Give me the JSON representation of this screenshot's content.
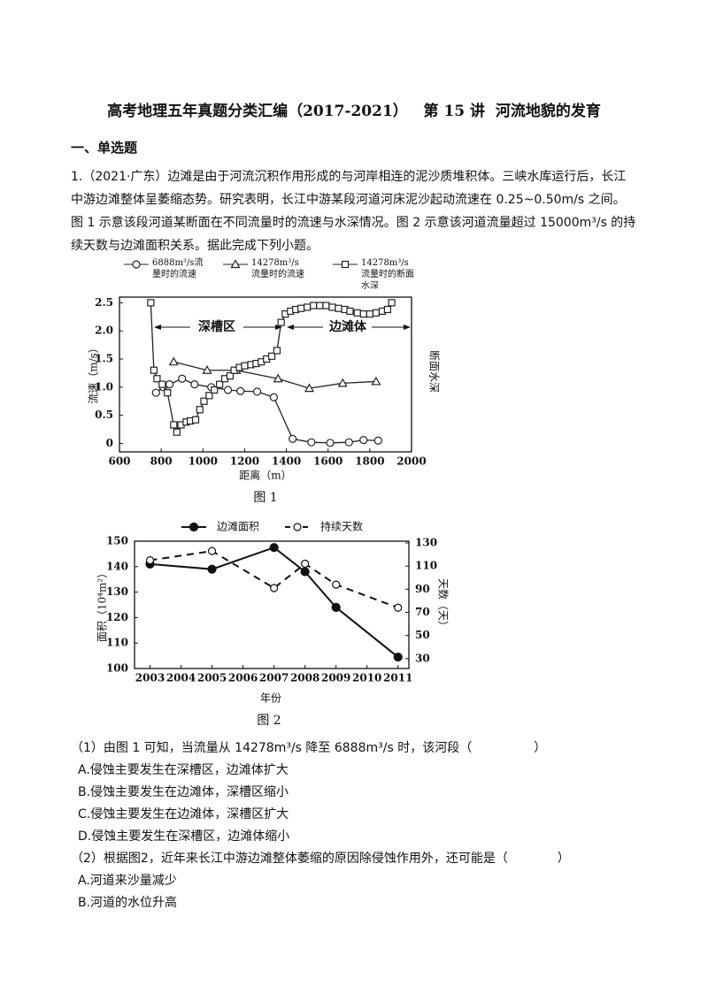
{
  "header": {
    "title": "高考地理五年真题分类汇编（2017-2021）   第 15 讲  河流地貌的发育"
  },
  "section": "一、单选题",
  "question": {
    "stem": "1.（2021·广东）边滩是由于河流沉积作用形成的与河岸相连的泥沙质堆积体。三峡水库运行后，长江中游边滩整体呈萎缩态势。研究表明，长江中游某段河道河床泥沙起动流速在 0.25~0.50m/s 之间。图 1 示意该段河道某断面在不同流量时的流速与水深情况。图 2 示意该河道流量超过 15000m³/s 的持续天数与边滩面积关系。据此完成下列小题。",
    "figure_captions": [
      "图 1",
      "图 2"
    ],
    "sub_questions": [
      {
        "stem": "（1）由图 1 可知，当流量从 14278m³/s 降至 6888m³/s 时，该河段（　　　　　）",
        "options": [
          "A.侵蚀主要发生在深槽区，边滩体扩大",
          "B.侵蚀主要发生在边滩体，深槽区缩小",
          "C.侵蚀主要发生在边滩体，深槽区扩大",
          "D.侵蚀主要发生在深槽区，边滩体缩小"
        ]
      },
      {
        "stem": "（2）根据图2，近年来长江中游边滩整体萎缩的原因除侵蚀作用外，还可能是（　　　　）",
        "options": [
          "A.河道来沙量减少",
          "B.河道的水位升高"
        ]
      }
    ]
  },
  "chart_data": [
    {
      "type": "line",
      "x_label": "距离（m）",
      "y_label": "流速（m/s）",
      "y2_label": "断面水深",
      "xlim": [
        600,
        2000
      ],
      "xticks": [
        600,
        800,
        1000,
        1200,
        1400,
        1600,
        1800,
        2000
      ],
      "ylim": [
        -0.15,
        2.6
      ],
      "yticks": [
        0,
        0.5,
        {
          "value": 1,
          "label": "1.0"
        },
        1.5,
        {
          "value": 2,
          "label": "2.0"
        },
        2.5
      ],
      "y2lim": [
        -0.15,
        2.6
      ],
      "annotations": [
        "深槽区",
        "边滩体"
      ],
      "series": [
        {
          "name": "6888m³/s流量时的流速",
          "color": "#222",
          "marker": "circle",
          "axis": "y",
          "x": [
            775,
            810,
            840,
            900,
            960,
            1040,
            1120,
            1180,
            1260,
            1340,
            1430,
            1520,
            1610,
            1700,
            1770,
            1840
          ],
          "values": [
            0.9,
            1.0,
            1.05,
            1.15,
            1.05,
            1.0,
            0.95,
            0.93,
            0.92,
            0.82,
            0.08,
            0.02,
            0.01,
            0.02,
            0.06,
            0.05
          ]
        },
        {
          "name": "14278m³/s流量时的流速",
          "color": "#222",
          "marker": "triangle",
          "axis": "y",
          "x": [
            860,
            1020,
            1160,
            1360,
            1510,
            1670,
            1830
          ],
          "values": [
            1.45,
            1.3,
            1.3,
            1.15,
            0.98,
            1.07,
            1.1
          ]
        },
        {
          "name": "14278m³/s流量时的断面水深",
          "color": "#222",
          "marker": "square",
          "axis": "y2",
          "x": [
            750,
            765,
            780,
            805,
            830,
            860,
            875,
            895,
            920,
            940,
            965,
            985,
            1005,
            1030,
            1055,
            1080,
            1105,
            1130,
            1150,
            1175,
            1200,
            1230,
            1255,
            1280,
            1305,
            1330,
            1355,
            1375,
            1395,
            1420,
            1445,
            1470,
            1500,
            1530,
            1560,
            1590,
            1620,
            1650,
            1680,
            1705,
            1740,
            1770,
            1800,
            1830,
            1860,
            1885,
            1905
          ],
          "values": [
            2.5,
            1.3,
            1.15,
            1.05,
            0.9,
            0.33,
            0.2,
            0.33,
            0.38,
            0.4,
            0.42,
            0.6,
            0.75,
            0.85,
            0.95,
            1.05,
            1.15,
            1.2,
            1.3,
            1.35,
            1.38,
            1.4,
            1.42,
            1.45,
            1.5,
            1.55,
            1.65,
            2.15,
            2.3,
            2.35,
            2.38,
            2.4,
            2.42,
            2.45,
            2.45,
            2.45,
            2.42,
            2.4,
            2.38,
            2.35,
            2.32,
            2.3,
            2.3,
            2.32,
            2.35,
            2.38,
            2.5
          ]
        }
      ]
    },
    {
      "type": "line",
      "x_label": "年份",
      "y_label": "面积（10⁴m²）",
      "y2_label": "天数（天）",
      "xlim": [
        2002.5,
        2011.35
      ],
      "xticks": [
        2003,
        2004,
        2005,
        2006,
        2007,
        2008,
        2009,
        2010,
        2011
      ],
      "ylim": [
        100,
        150
      ],
      "yticks": [
        100,
        110,
        120,
        130,
        140,
        150
      ],
      "y2lim": [
        21.5,
        131.5
      ],
      "y2ticks": [
        30,
        50,
        70,
        90,
        110,
        130
      ],
      "series": [
        {
          "name": "边滩面积",
          "color": "#111",
          "marker": "circle",
          "filled": true,
          "line_style": "solid",
          "axis": "y",
          "x": [
            2003,
            2005,
            2007,
            2008,
            2009,
            2011
          ],
          "values": [
            141,
            139,
            147.5,
            138,
            124,
            104.5
          ]
        },
        {
          "name": "持续天数",
          "color": "#111",
          "marker": "circle",
          "filled": false,
          "line_style": "dashed",
          "axis": "y2",
          "x": [
            2003,
            2005,
            2007,
            2008,
            2009,
            2011
          ],
          "values": [
            115,
            123,
            91,
            112,
            94,
            74
          ]
        }
      ]
    }
  ]
}
